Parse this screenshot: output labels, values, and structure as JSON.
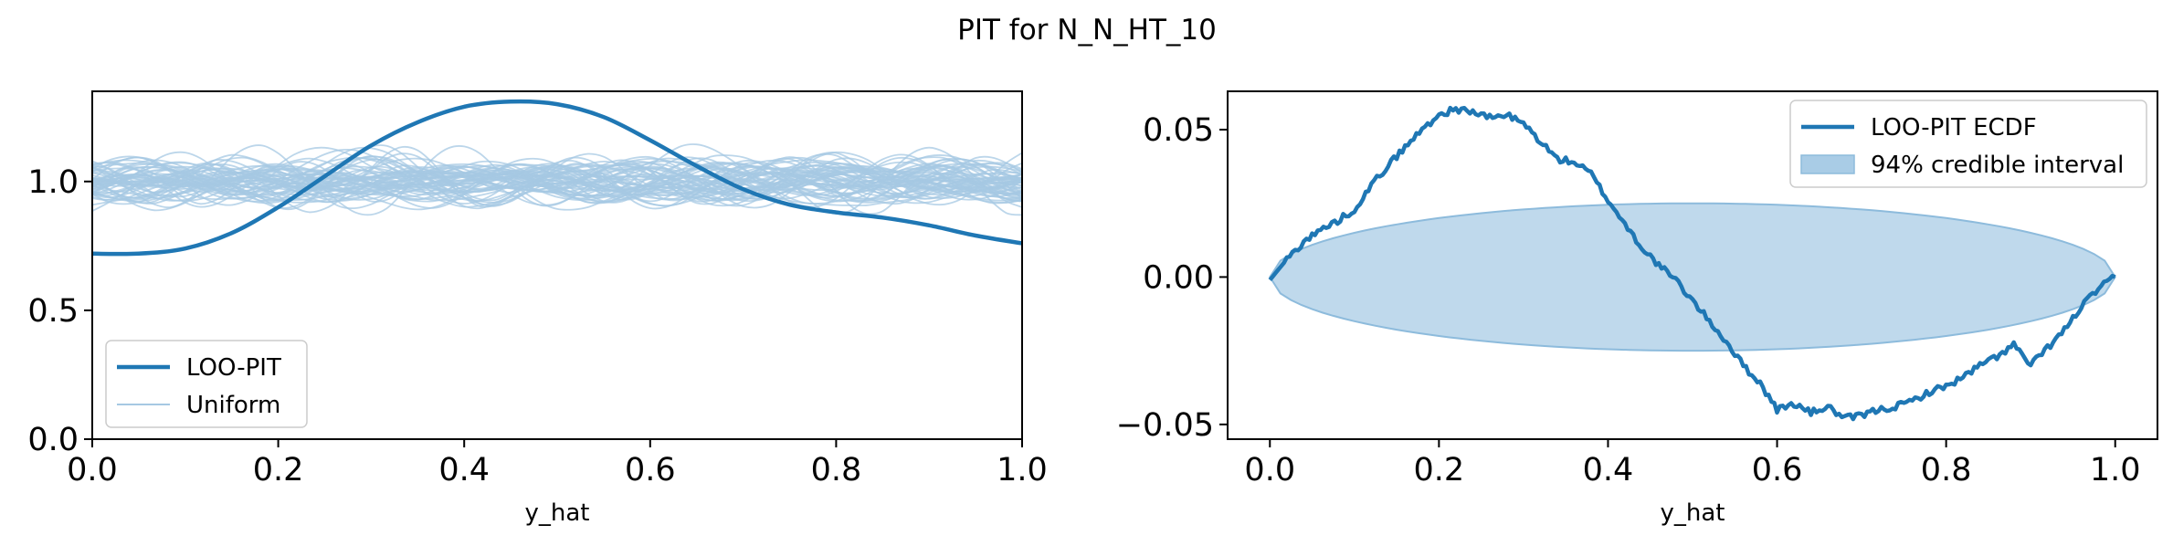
{
  "figure": {
    "title": "PIT for N_N_HT_10"
  },
  "colors": {
    "main": "#1f77b4",
    "uniform": "#a6c8e3",
    "band": "#a9cce6",
    "band_edge": "#8dbbdc"
  },
  "chart_data": [
    {
      "type": "line",
      "name": "loo_pit_kde",
      "xlabel": "y_hat",
      "ylabel": "",
      "xlim": [
        0.0,
        1.0
      ],
      "ylim": [
        0.0,
        1.35
      ],
      "xticks": [
        0.0,
        0.2,
        0.4,
        0.6,
        0.8,
        1.0
      ],
      "xtick_labels": [
        "0.0",
        "0.2",
        "0.4",
        "0.6",
        "0.8",
        "1.0"
      ],
      "yticks": [
        0.0,
        0.5,
        1.0
      ],
      "ytick_labels": [
        "0.0",
        "0.5",
        "1.0"
      ],
      "legend": {
        "position": "lower-left",
        "entries": [
          "LOO-PIT",
          "Uniform"
        ]
      },
      "series": [
        {
          "name": "LOO-PIT",
          "x": [
            0.0,
            0.05,
            0.1,
            0.15,
            0.2,
            0.25,
            0.3,
            0.35,
            0.4,
            0.45,
            0.5,
            0.55,
            0.6,
            0.65,
            0.7,
            0.75,
            0.8,
            0.85,
            0.9,
            0.95,
            1.0
          ],
          "y": [
            0.72,
            0.72,
            0.74,
            0.8,
            0.9,
            1.02,
            1.14,
            1.23,
            1.29,
            1.31,
            1.3,
            1.25,
            1.16,
            1.06,
            0.97,
            0.91,
            0.88,
            0.86,
            0.83,
            0.79,
            0.76
          ]
        },
        {
          "name": "Uniform",
          "count": 60,
          "center": 1.0,
          "spread": [
            0.8,
            1.2
          ]
        }
      ]
    },
    {
      "type": "line",
      "name": "loo_pit_ecdf",
      "xlabel": "y_hat",
      "ylabel": "",
      "xlim": [
        -0.05,
        1.05
      ],
      "ylim": [
        -0.055,
        0.063
      ],
      "xticks": [
        0.0,
        0.2,
        0.4,
        0.6,
        0.8,
        1.0
      ],
      "xtick_labels": [
        "0.0",
        "0.2",
        "0.4",
        "0.6",
        "0.8",
        "1.0"
      ],
      "yticks": [
        -0.05,
        0.0,
        0.05
      ],
      "ytick_labels": [
        "−0.05",
        "0.00",
        "0.05"
      ],
      "legend": {
        "position": "top-right",
        "entries": [
          "LOO-PIT ECDF",
          "94% credible interval"
        ]
      },
      "series": [
        {
          "name": "LOO-PIT ECDF",
          "x": [
            0.0,
            0.02,
            0.04,
            0.06,
            0.08,
            0.1,
            0.12,
            0.14,
            0.16,
            0.18,
            0.2,
            0.22,
            0.24,
            0.26,
            0.28,
            0.3,
            0.32,
            0.34,
            0.36,
            0.38,
            0.4,
            0.42,
            0.44,
            0.46,
            0.48,
            0.5,
            0.52,
            0.54,
            0.56,
            0.58,
            0.6,
            0.62,
            0.64,
            0.66,
            0.68,
            0.7,
            0.72,
            0.74,
            0.76,
            0.78,
            0.8,
            0.82,
            0.84,
            0.86,
            0.88,
            0.9,
            0.92,
            0.94,
            0.96,
            0.98,
            1.0
          ],
          "y": [
            -0.001,
            0.006,
            0.012,
            0.016,
            0.019,
            0.023,
            0.031,
            0.038,
            0.044,
            0.05,
            0.055,
            0.057,
            0.056,
            0.054,
            0.055,
            0.052,
            0.046,
            0.04,
            0.039,
            0.035,
            0.026,
            0.018,
            0.01,
            0.004,
            -0.001,
            -0.008,
            -0.015,
            -0.022,
            -0.03,
            -0.036,
            -0.045,
            -0.043,
            -0.046,
            -0.044,
            -0.048,
            -0.047,
            -0.045,
            -0.044,
            -0.042,
            -0.039,
            -0.037,
            -0.034,
            -0.03,
            -0.027,
            -0.023,
            -0.03,
            -0.024,
            -0.018,
            -0.01,
            -0.004,
            0.0
          ]
        },
        {
          "name": "94% credible interval",
          "x_range": [
            0.0,
            1.0
          ],
          "upper_peak": 0.025,
          "lower_peak": -0.025
        }
      ]
    }
  ]
}
